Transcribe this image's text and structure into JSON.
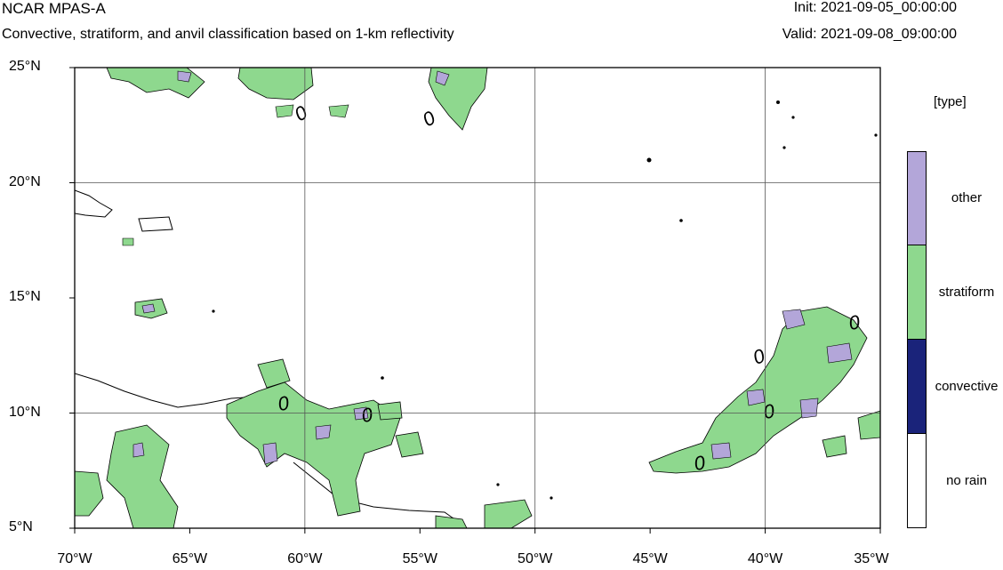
{
  "header": {
    "title": "NCAR MPAS-A",
    "subtitle": "Convective, stratiform, and anvil classification based on 1-km reflectivity",
    "init": "Init: 2021-09-05_00:00:00",
    "valid": "Valid: 2021-09-08_09:00:00"
  },
  "map": {
    "lon_range": [
      -70,
      -35
    ],
    "lat_range": [
      5,
      25
    ],
    "lon_ticks": [
      "70°W",
      "65°W",
      "60°W",
      "55°W",
      "50°W",
      "45°W",
      "40°W",
      "35°W"
    ],
    "lat_ticks": [
      "25°N",
      "20°N",
      "15°N",
      "10°N",
      "5°N"
    ],
    "contour_label": "0",
    "grid": true
  },
  "legend": {
    "title": "[type]",
    "items": [
      {
        "label": "other",
        "color": "#b3a6d9"
      },
      {
        "label": "stratiform",
        "color": "#8ed88e"
      },
      {
        "label": "convective",
        "color": "#1a237a"
      },
      {
        "label": "no rain",
        "color": "#ffffff"
      }
    ]
  }
}
